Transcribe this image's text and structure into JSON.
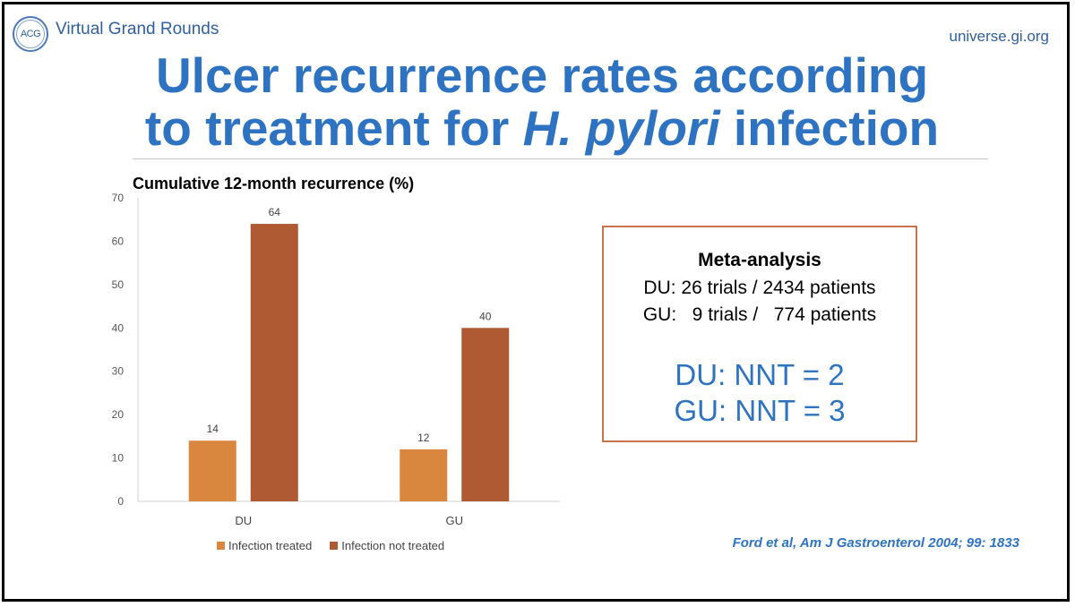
{
  "header": {
    "logo_text": "ACG",
    "brand": "Virtual Grand Rounds",
    "site": "universe.gi.org"
  },
  "title": {
    "line1": "Ulcer recurrence rates according",
    "line2_prefix": "to treatment for ",
    "line2_italic": "H. pylori",
    "line2_suffix": " infection"
  },
  "meta_analysis": {
    "heading": "Meta-analysis",
    "du_line": "DU: 26 trials / 2434 patients",
    "gu_line": "GU:   9 trials /   774 patients",
    "nnt_du": "DU: NNT = 2",
    "nnt_gu": "GU: NNT = 3"
  },
  "citation": "Ford et al, Am J Gastroenterol 2004; 99: 1833",
  "colors": {
    "title_blue": "#2e73c2",
    "treated": "#d9863f",
    "not_treated": "#b05a34",
    "box_border": "#c8734a"
  },
  "chart_data": {
    "type": "bar",
    "title": "",
    "ylabel": "Cumulative 12-month recurrence (%)",
    "xlabel": "",
    "categories": [
      "DU",
      "GU"
    ],
    "series": [
      {
        "name": "Infection treated",
        "values": [
          14,
          12
        ],
        "color": "#d9863f"
      },
      {
        "name": "Infection not treated",
        "values": [
          64,
          40
        ],
        "color": "#b05a34"
      }
    ],
    "ylim": [
      0,
      70
    ],
    "yticks": [
      0,
      10,
      20,
      30,
      40,
      50,
      60,
      70
    ],
    "data_labels": true,
    "grid": false,
    "legend": "bottom"
  }
}
